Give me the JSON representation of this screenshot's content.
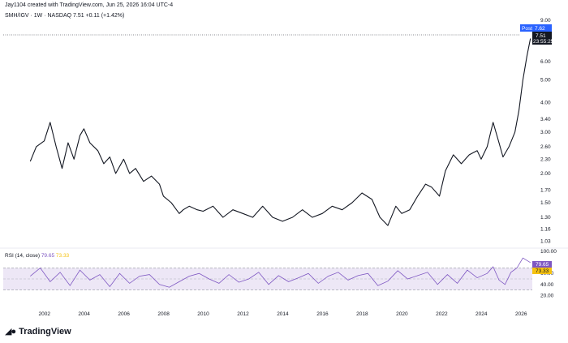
{
  "header": {
    "credit": "Jay1104 created with TradingView.com, Jun 25, 2026 16:04 UTC-4",
    "symbol_line": "SMH/IGV · 1W · NASDAQ",
    "last": "7.51",
    "change": "+0.11 (+1.42%)"
  },
  "price_badges": {
    "post_label": "Post",
    "post_value": "7.62",
    "last_value": "7.51",
    "countdown": "23:55:25"
  },
  "rsi": {
    "label": "RSI (14, close)",
    "rsi_value": "79.65",
    "ma_value": "73.33",
    "axis_ticks": [
      "100.00",
      "60.00",
      "40.00",
      "20.00"
    ],
    "upper_band": 70,
    "mid_band": 50,
    "lower_band": 30
  },
  "branding": {
    "name": "TradingView",
    "logo_icon": "tradingview-logo-icon"
  },
  "colors": {
    "price_line": "#131722",
    "rsi_line": "#7e57c2",
    "rsi_ma": "#f5c211",
    "post_badge": "#2962ff",
    "last_badge": "#131722",
    "band_fill": "#ede7f6"
  },
  "chart_data": {
    "type": "line",
    "scale": "log",
    "y_ticks": [
      "9.00",
      "8.00",
      "6.00",
      "5.00",
      "4.00",
      "3.40",
      "3.00",
      "2.60",
      "2.30",
      "2.00",
      "1.70",
      "1.50",
      "1.30",
      "1.16",
      "1.03"
    ],
    "x_ticks": [
      "2002",
      "2004",
      "2006",
      "2008",
      "2010",
      "2012",
      "2014",
      "2016",
      "2018",
      "2020",
      "2022",
      "2024",
      "2026"
    ],
    "ylim": [
      1.0,
      9.5
    ],
    "price_series": {
      "x": [
        2001.3,
        2001.6,
        2002.0,
        2002.3,
        2002.6,
        2002.9,
        2003.2,
        2003.5,
        2003.8,
        2004.0,
        2004.3,
        2004.7,
        2005.0,
        2005.3,
        2005.6,
        2006.0,
        2006.3,
        2006.6,
        2007.0,
        2007.4,
        2007.8,
        2008.0,
        2008.4,
        2008.8,
        2009.0,
        2009.3,
        2009.7,
        2010.0,
        2010.5,
        2011.0,
        2011.5,
        2012.0,
        2012.5,
        2013.0,
        2013.5,
        2014.0,
        2014.5,
        2015.0,
        2015.5,
        2016.0,
        2016.5,
        2017.0,
        2017.5,
        2018.0,
        2018.5,
        2018.9,
        2019.3,
        2019.7,
        2020.0,
        2020.4,
        2020.8,
        2021.2,
        2021.5,
        2021.9,
        2022.2,
        2022.6,
        2023.0,
        2023.4,
        2023.8,
        2024.0,
        2024.3,
        2024.6,
        2024.9,
        2025.1,
        2025.4,
        2025.7,
        2025.9,
        2026.1,
        2026.3,
        2026.48
      ],
      "y": [
        2.25,
        2.6,
        2.75,
        3.3,
        2.6,
        2.1,
        2.7,
        2.3,
        2.9,
        3.1,
        2.7,
        2.5,
        2.2,
        2.35,
        2.0,
        2.3,
        2.0,
        2.1,
        1.85,
        1.95,
        1.8,
        1.6,
        1.5,
        1.35,
        1.4,
        1.45,
        1.4,
        1.38,
        1.45,
        1.3,
        1.4,
        1.35,
        1.3,
        1.45,
        1.3,
        1.25,
        1.3,
        1.4,
        1.3,
        1.35,
        1.45,
        1.4,
        1.5,
        1.65,
        1.55,
        1.3,
        1.2,
        1.45,
        1.35,
        1.4,
        1.6,
        1.8,
        1.75,
        1.6,
        2.05,
        2.4,
        2.2,
        2.4,
        2.5,
        2.3,
        2.6,
        3.3,
        2.7,
        2.35,
        2.6,
        3.0,
        3.7,
        5.0,
        6.3,
        7.51
      ]
    },
    "rsi_series": {
      "x": [
        2001.3,
        2001.8,
        2002.3,
        2002.8,
        2003.3,
        2003.8,
        2004.3,
        2004.8,
        2005.3,
        2005.8,
        2006.3,
        2006.8,
        2007.3,
        2007.8,
        2008.3,
        2008.8,
        2009.3,
        2009.8,
        2010.3,
        2010.8,
        2011.3,
        2011.8,
        2012.3,
        2012.8,
        2013.3,
        2013.8,
        2014.3,
        2014.8,
        2015.3,
        2015.8,
        2016.3,
        2016.8,
        2017.3,
        2017.8,
        2018.3,
        2018.8,
        2019.3,
        2019.8,
        2020.3,
        2020.8,
        2021.3,
        2021.8,
        2022.3,
        2022.8,
        2023.3,
        2023.8,
        2024.3,
        2024.6,
        2024.9,
        2025.2,
        2025.5,
        2025.8,
        2026.1,
        2026.48
      ],
      "y": [
        55,
        70,
        45,
        62,
        38,
        66,
        48,
        58,
        36,
        60,
        42,
        55,
        58,
        40,
        35,
        45,
        55,
        60,
        50,
        42,
        58,
        44,
        50,
        62,
        40,
        56,
        45,
        52,
        60,
        42,
        55,
        62,
        48,
        56,
        60,
        38,
        46,
        65,
        50,
        56,
        62,
        40,
        58,
        42,
        66,
        52,
        60,
        72,
        48,
        40,
        62,
        70,
        88,
        79.65
      ]
    }
  }
}
